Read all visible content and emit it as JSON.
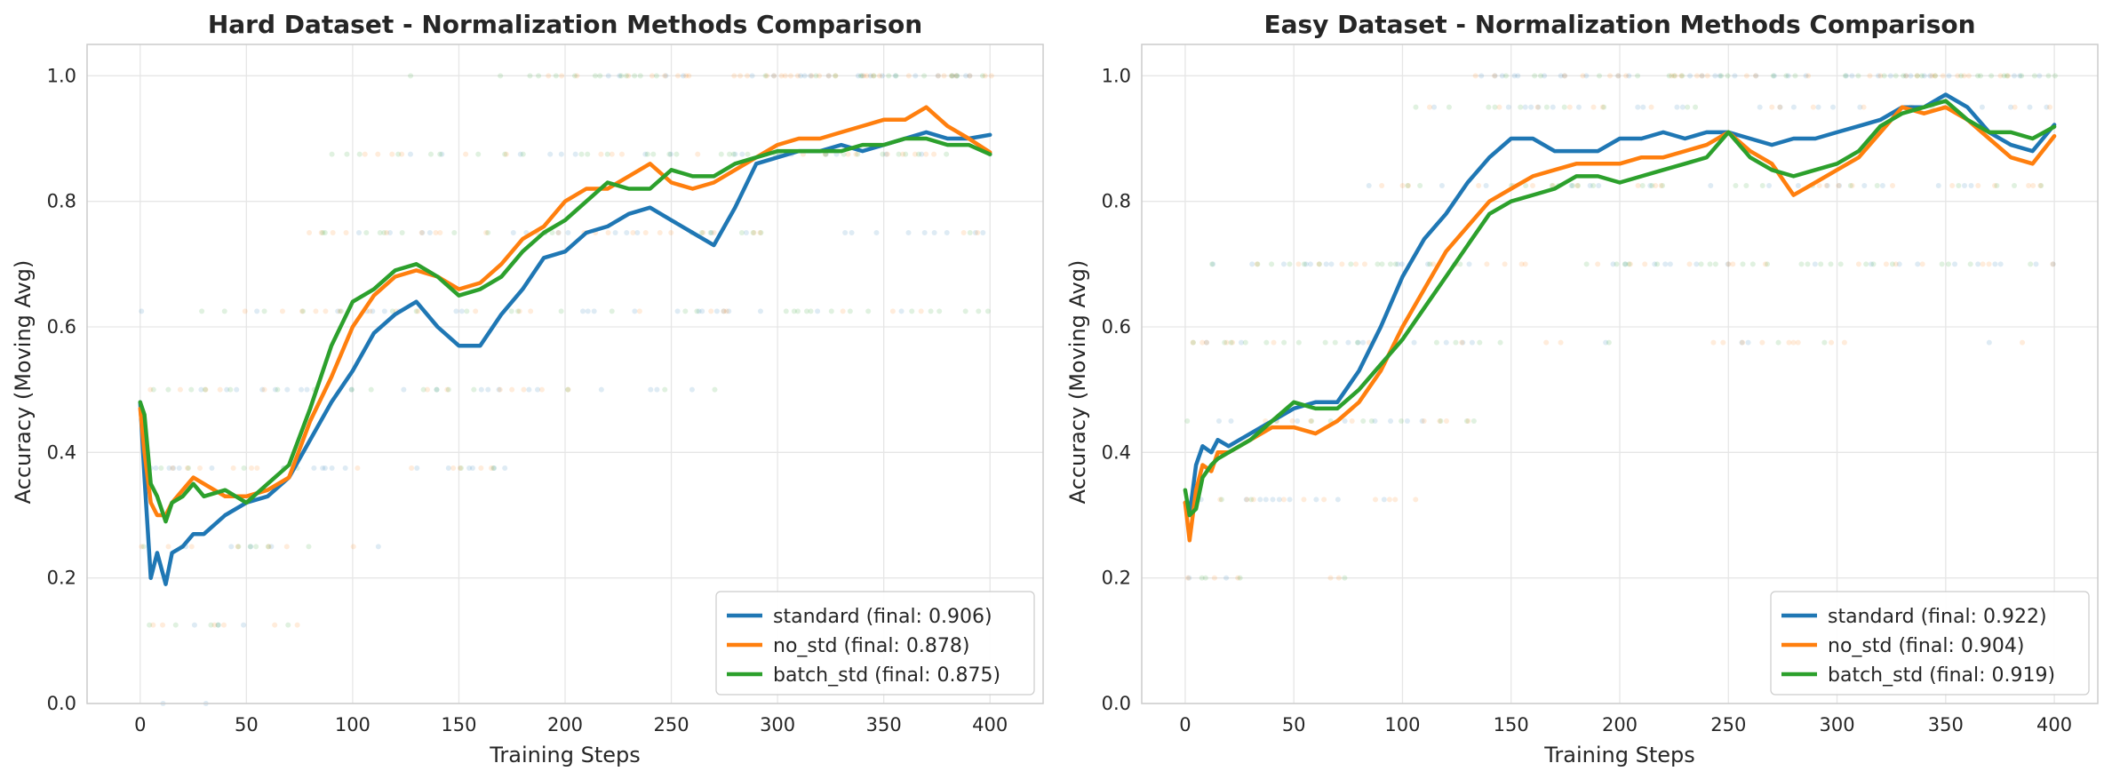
{
  "colors": {
    "standard": "#1f77b4",
    "no_std": "#ff7f0e",
    "batch_std": "#2ca02c"
  },
  "chart_data": [
    {
      "type": "line",
      "title": "Hard Dataset - Normalization Methods Comparison",
      "xlabel": "Training Steps",
      "ylabel": "Accuracy (Moving Avg)",
      "xlim": [
        -25,
        425
      ],
      "ylim": [
        0.0,
        1.05
      ],
      "xticks": [
        "0",
        "50",
        "100",
        "150",
        "200",
        "250",
        "300",
        "350",
        "400"
      ],
      "yticks": [
        "0.0",
        "0.2",
        "0.4",
        "0.6",
        "0.8",
        "1.0"
      ],
      "grid": true,
      "legend_position": "lower-right",
      "scatter_levels": [
        0.0,
        0.125,
        0.25,
        0.375,
        0.5,
        0.625,
        0.75,
        0.875,
        1.0
      ],
      "series": [
        {
          "name": "standard",
          "legend": "standard (final: 0.906)",
          "color_key": "standard",
          "x": [
            0,
            2,
            5,
            8,
            12,
            15,
            20,
            25,
            30,
            40,
            50,
            60,
            70,
            80,
            90,
            100,
            110,
            120,
            130,
            140,
            150,
            160,
            170,
            180,
            190,
            200,
            210,
            220,
            230,
            240,
            250,
            260,
            270,
            280,
            290,
            300,
            310,
            320,
            330,
            340,
            350,
            360,
            370,
            380,
            390,
            400
          ],
          "y": [
            0.48,
            0.36,
            0.2,
            0.24,
            0.19,
            0.24,
            0.25,
            0.27,
            0.27,
            0.3,
            0.32,
            0.33,
            0.36,
            0.42,
            0.48,
            0.53,
            0.59,
            0.62,
            0.64,
            0.6,
            0.57,
            0.57,
            0.62,
            0.66,
            0.71,
            0.72,
            0.75,
            0.76,
            0.78,
            0.79,
            0.77,
            0.75,
            0.73,
            0.79,
            0.86,
            0.87,
            0.88,
            0.88,
            0.89,
            0.88,
            0.89,
            0.9,
            0.91,
            0.9,
            0.9,
            0.906
          ]
        },
        {
          "name": "no_std",
          "legend": "no_std (final: 0.878)",
          "color_key": "no_std",
          "x": [
            0,
            2,
            5,
            8,
            12,
            15,
            20,
            25,
            30,
            40,
            50,
            60,
            70,
            80,
            90,
            100,
            110,
            120,
            130,
            140,
            150,
            160,
            170,
            180,
            190,
            200,
            210,
            220,
            230,
            240,
            250,
            260,
            270,
            280,
            290,
            300,
            310,
            320,
            330,
            340,
            350,
            360,
            370,
            380,
            390,
            400
          ],
          "y": [
            0.47,
            0.4,
            0.32,
            0.3,
            0.3,
            0.32,
            0.34,
            0.36,
            0.35,
            0.33,
            0.33,
            0.34,
            0.36,
            0.45,
            0.52,
            0.6,
            0.65,
            0.68,
            0.69,
            0.68,
            0.66,
            0.67,
            0.7,
            0.74,
            0.76,
            0.8,
            0.82,
            0.82,
            0.84,
            0.86,
            0.83,
            0.82,
            0.83,
            0.85,
            0.87,
            0.89,
            0.9,
            0.9,
            0.91,
            0.92,
            0.93,
            0.93,
            0.95,
            0.92,
            0.9,
            0.878
          ]
        },
        {
          "name": "batch_std",
          "legend": "batch_std (final: 0.875)",
          "color_key": "batch_std",
          "x": [
            0,
            2,
            5,
            8,
            12,
            15,
            20,
            25,
            30,
            40,
            50,
            60,
            70,
            80,
            90,
            100,
            110,
            120,
            130,
            140,
            150,
            160,
            170,
            180,
            190,
            200,
            210,
            220,
            230,
            240,
            250,
            260,
            270,
            280,
            290,
            300,
            310,
            320,
            330,
            340,
            350,
            360,
            370,
            380,
            390,
            400
          ],
          "y": [
            0.48,
            0.46,
            0.35,
            0.33,
            0.29,
            0.32,
            0.33,
            0.35,
            0.33,
            0.34,
            0.32,
            0.35,
            0.38,
            0.47,
            0.57,
            0.64,
            0.66,
            0.69,
            0.7,
            0.68,
            0.65,
            0.66,
            0.68,
            0.72,
            0.75,
            0.77,
            0.8,
            0.83,
            0.82,
            0.82,
            0.85,
            0.84,
            0.84,
            0.86,
            0.87,
            0.88,
            0.88,
            0.88,
            0.88,
            0.89,
            0.89,
            0.9,
            0.9,
            0.89,
            0.89,
            0.875
          ]
        }
      ]
    },
    {
      "type": "line",
      "title": "Easy Dataset - Normalization Methods Comparison",
      "xlabel": "Training Steps",
      "ylabel": "Accuracy (Moving Avg)",
      "xlim": [
        -20,
        420
      ],
      "ylim": [
        0.0,
        1.05
      ],
      "xticks": [
        "0",
        "50",
        "100",
        "150",
        "200",
        "250",
        "300",
        "350",
        "400"
      ],
      "yticks": [
        "0.0",
        "0.2",
        "0.4",
        "0.6",
        "0.8",
        "1.0"
      ],
      "grid": true,
      "legend_position": "lower-right",
      "scatter_levels": [
        0.2,
        0.325,
        0.45,
        0.575,
        0.7,
        0.825,
        0.95,
        1.0
      ],
      "series": [
        {
          "name": "standard",
          "legend": "standard (final: 0.922)",
          "color_key": "standard",
          "x": [
            0,
            2,
            5,
            8,
            12,
            15,
            20,
            25,
            30,
            40,
            50,
            60,
            70,
            80,
            90,
            100,
            110,
            120,
            130,
            140,
            150,
            160,
            170,
            180,
            190,
            200,
            210,
            220,
            230,
            240,
            250,
            260,
            270,
            280,
            290,
            300,
            310,
            320,
            330,
            340,
            350,
            360,
            370,
            380,
            390,
            400
          ],
          "y": [
            0.32,
            0.3,
            0.38,
            0.41,
            0.4,
            0.42,
            0.41,
            0.42,
            0.43,
            0.45,
            0.47,
            0.48,
            0.48,
            0.53,
            0.6,
            0.68,
            0.74,
            0.78,
            0.83,
            0.87,
            0.9,
            0.9,
            0.88,
            0.88,
            0.88,
            0.9,
            0.9,
            0.91,
            0.9,
            0.91,
            0.91,
            0.9,
            0.89,
            0.9,
            0.9,
            0.91,
            0.92,
            0.93,
            0.95,
            0.95,
            0.97,
            0.95,
            0.91,
            0.89,
            0.88,
            0.922
          ]
        },
        {
          "name": "no_std",
          "legend": "no_std (final: 0.904)",
          "color_key": "no_std",
          "x": [
            0,
            2,
            5,
            8,
            12,
            15,
            20,
            25,
            30,
            40,
            50,
            60,
            70,
            80,
            90,
            100,
            110,
            120,
            130,
            140,
            150,
            160,
            170,
            180,
            190,
            200,
            210,
            220,
            230,
            240,
            250,
            260,
            270,
            280,
            290,
            300,
            310,
            320,
            330,
            340,
            350,
            360,
            370,
            380,
            390,
            400
          ],
          "y": [
            0.32,
            0.26,
            0.34,
            0.38,
            0.37,
            0.4,
            0.4,
            0.41,
            0.42,
            0.44,
            0.44,
            0.43,
            0.45,
            0.48,
            0.53,
            0.6,
            0.66,
            0.72,
            0.76,
            0.8,
            0.82,
            0.84,
            0.85,
            0.86,
            0.86,
            0.86,
            0.87,
            0.87,
            0.88,
            0.89,
            0.91,
            0.88,
            0.86,
            0.81,
            0.83,
            0.85,
            0.87,
            0.91,
            0.95,
            0.94,
            0.95,
            0.93,
            0.9,
            0.87,
            0.86,
            0.904
          ]
        },
        {
          "name": "batch_std",
          "legend": "batch_std (final: 0.919)",
          "color_key": "batch_std",
          "x": [
            0,
            2,
            5,
            8,
            12,
            15,
            20,
            25,
            30,
            40,
            50,
            60,
            70,
            80,
            90,
            100,
            110,
            120,
            130,
            140,
            150,
            160,
            170,
            180,
            190,
            200,
            210,
            220,
            230,
            240,
            250,
            260,
            270,
            280,
            290,
            300,
            310,
            320,
            330,
            340,
            350,
            360,
            370,
            380,
            390,
            400
          ],
          "y": [
            0.34,
            0.3,
            0.31,
            0.36,
            0.38,
            0.39,
            0.4,
            0.41,
            0.42,
            0.45,
            0.48,
            0.47,
            0.47,
            0.5,
            0.54,
            0.58,
            0.63,
            0.68,
            0.73,
            0.78,
            0.8,
            0.81,
            0.82,
            0.84,
            0.84,
            0.83,
            0.84,
            0.85,
            0.86,
            0.87,
            0.91,
            0.87,
            0.85,
            0.84,
            0.85,
            0.86,
            0.88,
            0.92,
            0.94,
            0.95,
            0.96,
            0.93,
            0.91,
            0.91,
            0.9,
            0.919
          ]
        }
      ]
    }
  ]
}
